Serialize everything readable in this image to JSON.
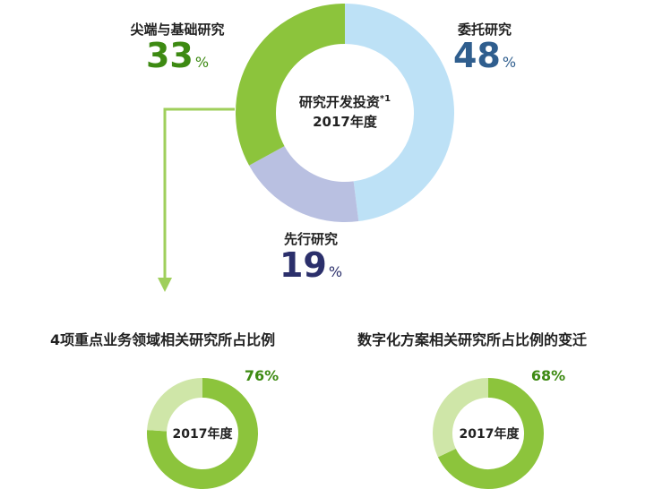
{
  "colors": {
    "green_dark": "#3d8a12",
    "blue_dark": "#2f5e8e",
    "navy": "#2b2f6b",
    "green_ring": "#8cc43c",
    "blue_ring": "#bde1f6",
    "lavender_ring": "#b9c0e1",
    "light_green": "#cfe6a8",
    "arrow_green": "#9fcf5b"
  },
  "chart_data": [
    {
      "type": "pie",
      "title_line1": "研究开发投资",
      "title_mark": "*1",
      "title_line2": "2017年度",
      "slices": [
        {
          "name": "委托研究",
          "value": 48,
          "unit": "%",
          "color": "#bde1f6",
          "label_color": "#2f5e8e"
        },
        {
          "name": "先行研究",
          "value": 19,
          "unit": "%",
          "color": "#b9c0e1",
          "label_color": "#2b2f6b"
        },
        {
          "name": "尖端与基础研究",
          "value": 33,
          "unit": "%",
          "color": "#8cc43c",
          "label_color": "#3d8a12"
        }
      ]
    },
    {
      "type": "pie",
      "title": "4项重点业务领域相关研究所占比例",
      "center_label": "2017年度",
      "value": 76,
      "value_label": "76%",
      "color": "#8cc43c",
      "rest_color": "#cfe6a8"
    },
    {
      "type": "pie",
      "title": "数字化方案相关研究所占比例的变迁",
      "center_label": "2017年度",
      "value": 68,
      "value_label": "68%",
      "color": "#8cc43c",
      "rest_color": "#cfe6a8"
    }
  ]
}
